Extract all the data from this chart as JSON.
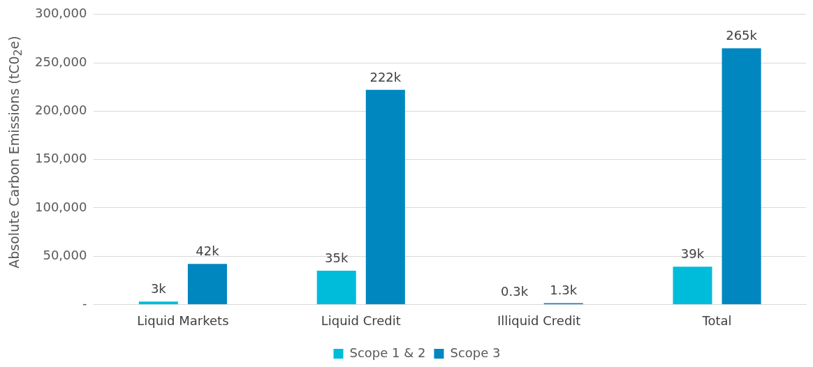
{
  "chart_data": {
    "type": "bar",
    "ylabel": "Absolute Carbon Emissions (tC0$_{2}$e)",
    "categories": [
      "Liquid Markets",
      "Liquid Credit",
      "Illiquid Credit",
      "Total"
    ],
    "series": [
      {
        "name": "Scope 1 & 2",
        "color": "#00bcdb",
        "values": [
          3000,
          35000,
          300,
          39000
        ],
        "value_labels": [
          "3k",
          "35k",
          "0.3k",
          "39k"
        ]
      },
      {
        "name": "Scope 3",
        "color": "#0087c0",
        "values": [
          42000,
          222000,
          1300,
          265000
        ],
        "value_labels": [
          "42k",
          "222k",
          "1.3k",
          "265k"
        ]
      }
    ],
    "ylim": [
      0,
      300000
    ],
    "yticks": [
      {
        "value": 0,
        "label": "-"
      },
      {
        "value": 50000,
        "label": "50,000"
      },
      {
        "value": 100000,
        "label": "100,000"
      },
      {
        "value": 150000,
        "label": "150,000"
      },
      {
        "value": 200000,
        "label": "200,000"
      },
      {
        "value": 250000,
        "label": "250,000"
      },
      {
        "value": 300000,
        "label": "300,000"
      }
    ],
    "grid": "y",
    "legend": "bottom"
  }
}
